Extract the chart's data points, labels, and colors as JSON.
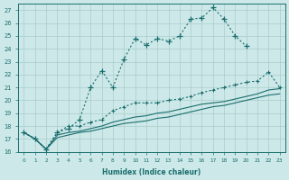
{
  "xlabel": "Humidex (Indice chaleur)",
  "ylabel": "",
  "bg_color": "#cde8e8",
  "grid_color": "#aacccc",
  "line_color": "#1a6e6e",
  "xlim": [
    -0.5,
    23.5
  ],
  "ylim": [
    16,
    27.5
  ],
  "xticks": [
    0,
    1,
    2,
    3,
    4,
    5,
    6,
    7,
    8,
    9,
    10,
    11,
    12,
    13,
    14,
    15,
    16,
    17,
    18,
    19,
    20,
    21,
    22,
    23
  ],
  "yticks": [
    16,
    17,
    18,
    19,
    20,
    21,
    22,
    23,
    24,
    25,
    26,
    27
  ],
  "line1_y": [
    17.5,
    17.0,
    16.2,
    17.5,
    17.8,
    18.5,
    21.0,
    22.3,
    21.0,
    23.2,
    24.8,
    24.3,
    24.8,
    24.6,
    25.0,
    26.3,
    26.4,
    27.2,
    26.3,
    25.0,
    24.2,
    null,
    null,
    null
  ],
  "line2_y": [
    17.5,
    17.0,
    16.2,
    17.5,
    18.0,
    18.0,
    18.3,
    18.5,
    19.2,
    19.5,
    19.8,
    19.8,
    19.8,
    20.0,
    20.1,
    20.3,
    20.6,
    20.8,
    21.0,
    21.2,
    21.4,
    21.5,
    22.2,
    21.0
  ],
  "line3_y": [
    17.5,
    17.0,
    16.2,
    17.3,
    17.5,
    17.6,
    17.8,
    18.0,
    18.3,
    18.5,
    18.7,
    18.8,
    19.0,
    19.1,
    19.3,
    19.5,
    19.7,
    19.8,
    19.9,
    20.1,
    20.3,
    20.5,
    20.8,
    20.9
  ],
  "line4_y": [
    17.5,
    17.0,
    16.2,
    17.1,
    17.3,
    17.5,
    17.6,
    17.8,
    18.0,
    18.2,
    18.3,
    18.4,
    18.6,
    18.7,
    18.9,
    19.1,
    19.3,
    19.5,
    19.6,
    19.8,
    20.0,
    20.2,
    20.4,
    20.5
  ]
}
